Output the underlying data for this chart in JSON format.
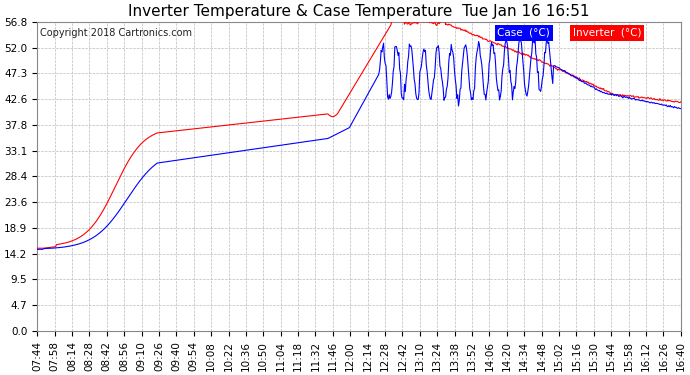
{
  "title": "Inverter Temperature & Case Temperature  Tue Jan 16 16:51",
  "copyright": "Copyright 2018 Cartronics.com",
  "y_ticks": [
    0.0,
    4.7,
    9.5,
    14.2,
    18.9,
    23.6,
    28.4,
    33.1,
    37.8,
    42.6,
    47.3,
    52.0,
    56.8
  ],
  "ylim": [
    0.0,
    56.8
  ],
  "x_labels": [
    "07:44",
    "07:58",
    "08:14",
    "08:28",
    "08:42",
    "08:56",
    "09:10",
    "09:26",
    "09:40",
    "09:54",
    "10:08",
    "10:22",
    "10:36",
    "10:50",
    "11:04",
    "11:18",
    "11:32",
    "11:46",
    "12:00",
    "12:14",
    "12:28",
    "12:42",
    "13:10",
    "13:24",
    "13:38",
    "13:52",
    "14:06",
    "14:20",
    "14:34",
    "14:48",
    "15:02",
    "15:16",
    "15:30",
    "15:44",
    "15:58",
    "16:12",
    "16:26",
    "16:40"
  ],
  "bg_color": "#ffffff",
  "grid_color": "#bbbbbb",
  "case_color": "#ff0000",
  "inverter_color": "#0000ff",
  "legend_case_bg": "#0000ff",
  "legend_inverter_bg": "#ff0000",
  "title_fontsize": 11,
  "tick_fontsize": 7.5,
  "copyright_fontsize": 7
}
